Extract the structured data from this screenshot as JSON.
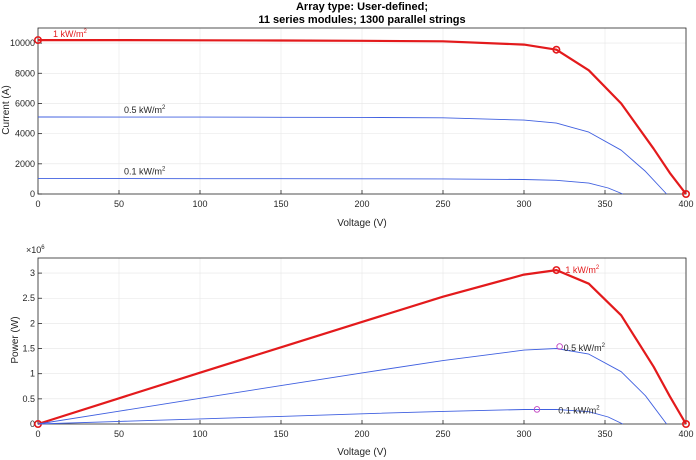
{
  "colors": {
    "strong": "#e31a1c",
    "weak": "#4060e0",
    "marker_weak": "#c040c0",
    "axis": "#262626",
    "grid": "#e6e6e6"
  },
  "chart_data": [
    {
      "type": "line",
      "name": "iv-curves",
      "title": [
        "Array type: User-defined;",
        "11 series modules; 1300 parallel strings"
      ],
      "xlabel": "Voltage (V)",
      "ylabel": "Current (A)",
      "xlim": [
        0,
        400
      ],
      "ylim": [
        0,
        11000
      ],
      "xticks": [
        0,
        50,
        100,
        150,
        200,
        250,
        300,
        350,
        400
      ],
      "yticks": [
        0,
        2000,
        4000,
        6000,
        8000,
        10000
      ],
      "series": [
        {
          "name": "1 kW/m2",
          "label": "1 kW/m",
          "label_sup": "2",
          "color": "strong",
          "x": [
            0,
            50,
            100,
            150,
            200,
            250,
            300,
            320,
            340,
            360,
            380,
            390,
            400
          ],
          "y": [
            10200,
            10195,
            10185,
            10170,
            10150,
            10120,
            9900,
            9560,
            8200,
            6000,
            3000,
            1400,
            0
          ],
          "markers": [
            [
              0,
              10200
            ],
            [
              320,
              9560
            ],
            [
              400,
              0
            ]
          ]
        },
        {
          "name": "0.5 kW/m2",
          "label": "0.5 kW/m",
          "label_sup": "2",
          "color": "weak",
          "x": [
            0,
            50,
            100,
            150,
            200,
            250,
            300,
            320,
            340,
            360,
            375,
            388
          ],
          "y": [
            5100,
            5098,
            5093,
            5085,
            5075,
            5050,
            4900,
            4700,
            4100,
            2900,
            1500,
            0
          ]
        },
        {
          "name": "0.1 kW/m2",
          "label": "0.1 kW/m",
          "label_sup": "2",
          "color": "weak",
          "x": [
            0,
            50,
            100,
            150,
            200,
            250,
            300,
            320,
            340,
            352,
            361
          ],
          "y": [
            1020,
            1019,
            1017,
            1015,
            1010,
            1000,
            960,
            910,
            720,
            400,
            0
          ]
        }
      ]
    },
    {
      "type": "line",
      "name": "pv-curves",
      "xlabel": "Voltage (V)",
      "ylabel": "Power (W)",
      "exponent_label": "×10",
      "exponent_sup": "6",
      "xlim": [
        0,
        400
      ],
      "ylim": [
        0,
        3.3
      ],
      "xticks": [
        0,
        50,
        100,
        150,
        200,
        250,
        300,
        350,
        400
      ],
      "yticks": [
        0,
        0.5,
        1,
        1.5,
        2,
        2.5,
        3
      ],
      "series": [
        {
          "name": "1 kW/m2",
          "label": "1 kW/m",
          "label_sup": "2",
          "color": "strong",
          "x": [
            0,
            50,
            100,
            150,
            200,
            250,
            300,
            320,
            340,
            360,
            380,
            390,
            400
          ],
          "y": [
            0,
            0.51,
            1.02,
            1.525,
            2.03,
            2.53,
            2.97,
            3.06,
            2.79,
            2.16,
            1.14,
            0.55,
            0
          ],
          "markers": [
            [
              0,
              0
            ],
            [
              320,
              3.06
            ],
            [
              400,
              0
            ]
          ]
        },
        {
          "name": "0.5 kW/m2",
          "label": "0.5 kW/m",
          "label_sup": "2",
          "color": "weak",
          "x": [
            0,
            50,
            100,
            150,
            200,
            250,
            300,
            320,
            340,
            360,
            375,
            388
          ],
          "y": [
            0,
            0.255,
            0.51,
            0.763,
            1.015,
            1.26,
            1.47,
            1.5,
            1.39,
            1.04,
            0.56,
            0
          ],
          "markers": [
            [
              322,
              1.54
            ]
          ]
        },
        {
          "name": "0.1 kW/m2",
          "label": "0.1 kW/m",
          "label_sup": "2",
          "color": "weak",
          "x": [
            0,
            50,
            100,
            150,
            200,
            250,
            300,
            320,
            340,
            352,
            361
          ],
          "y": [
            0,
            0.051,
            0.102,
            0.152,
            0.202,
            0.25,
            0.288,
            0.291,
            0.245,
            0.14,
            0
          ],
          "markers": [
            [
              308,
              0.29
            ]
          ]
        }
      ]
    }
  ]
}
